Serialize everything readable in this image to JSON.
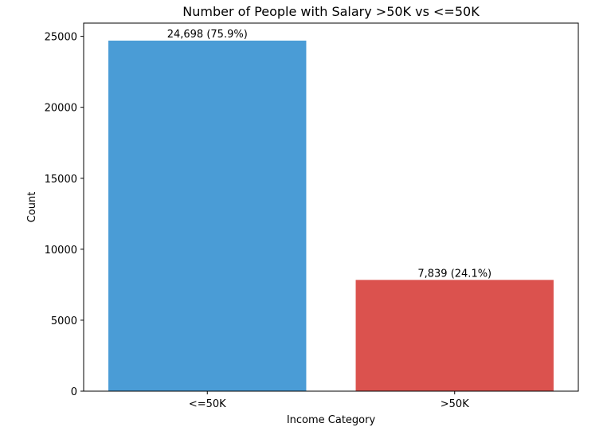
{
  "chart_data": {
    "type": "bar",
    "title": "Number of People with Salary >50K vs <=50K",
    "xlabel": "Income Category",
    "ylabel": "Count",
    "categories": [
      "<=50K",
      ">50K"
    ],
    "values": [
      24698,
      7839
    ],
    "data_labels": [
      "24,698 (75.9%)",
      "7,839 (24.1%)"
    ],
    "colors": [
      "#4a9cd6",
      "#db524e"
    ],
    "ylim": [
      0,
      25932
    ],
    "yticks": [
      0,
      5000,
      10000,
      15000,
      20000,
      25000
    ],
    "ytick_labels": [
      "0",
      "5000",
      "10000",
      "15000",
      "20000",
      "25000"
    ],
    "grid": false,
    "legend": "none"
  }
}
